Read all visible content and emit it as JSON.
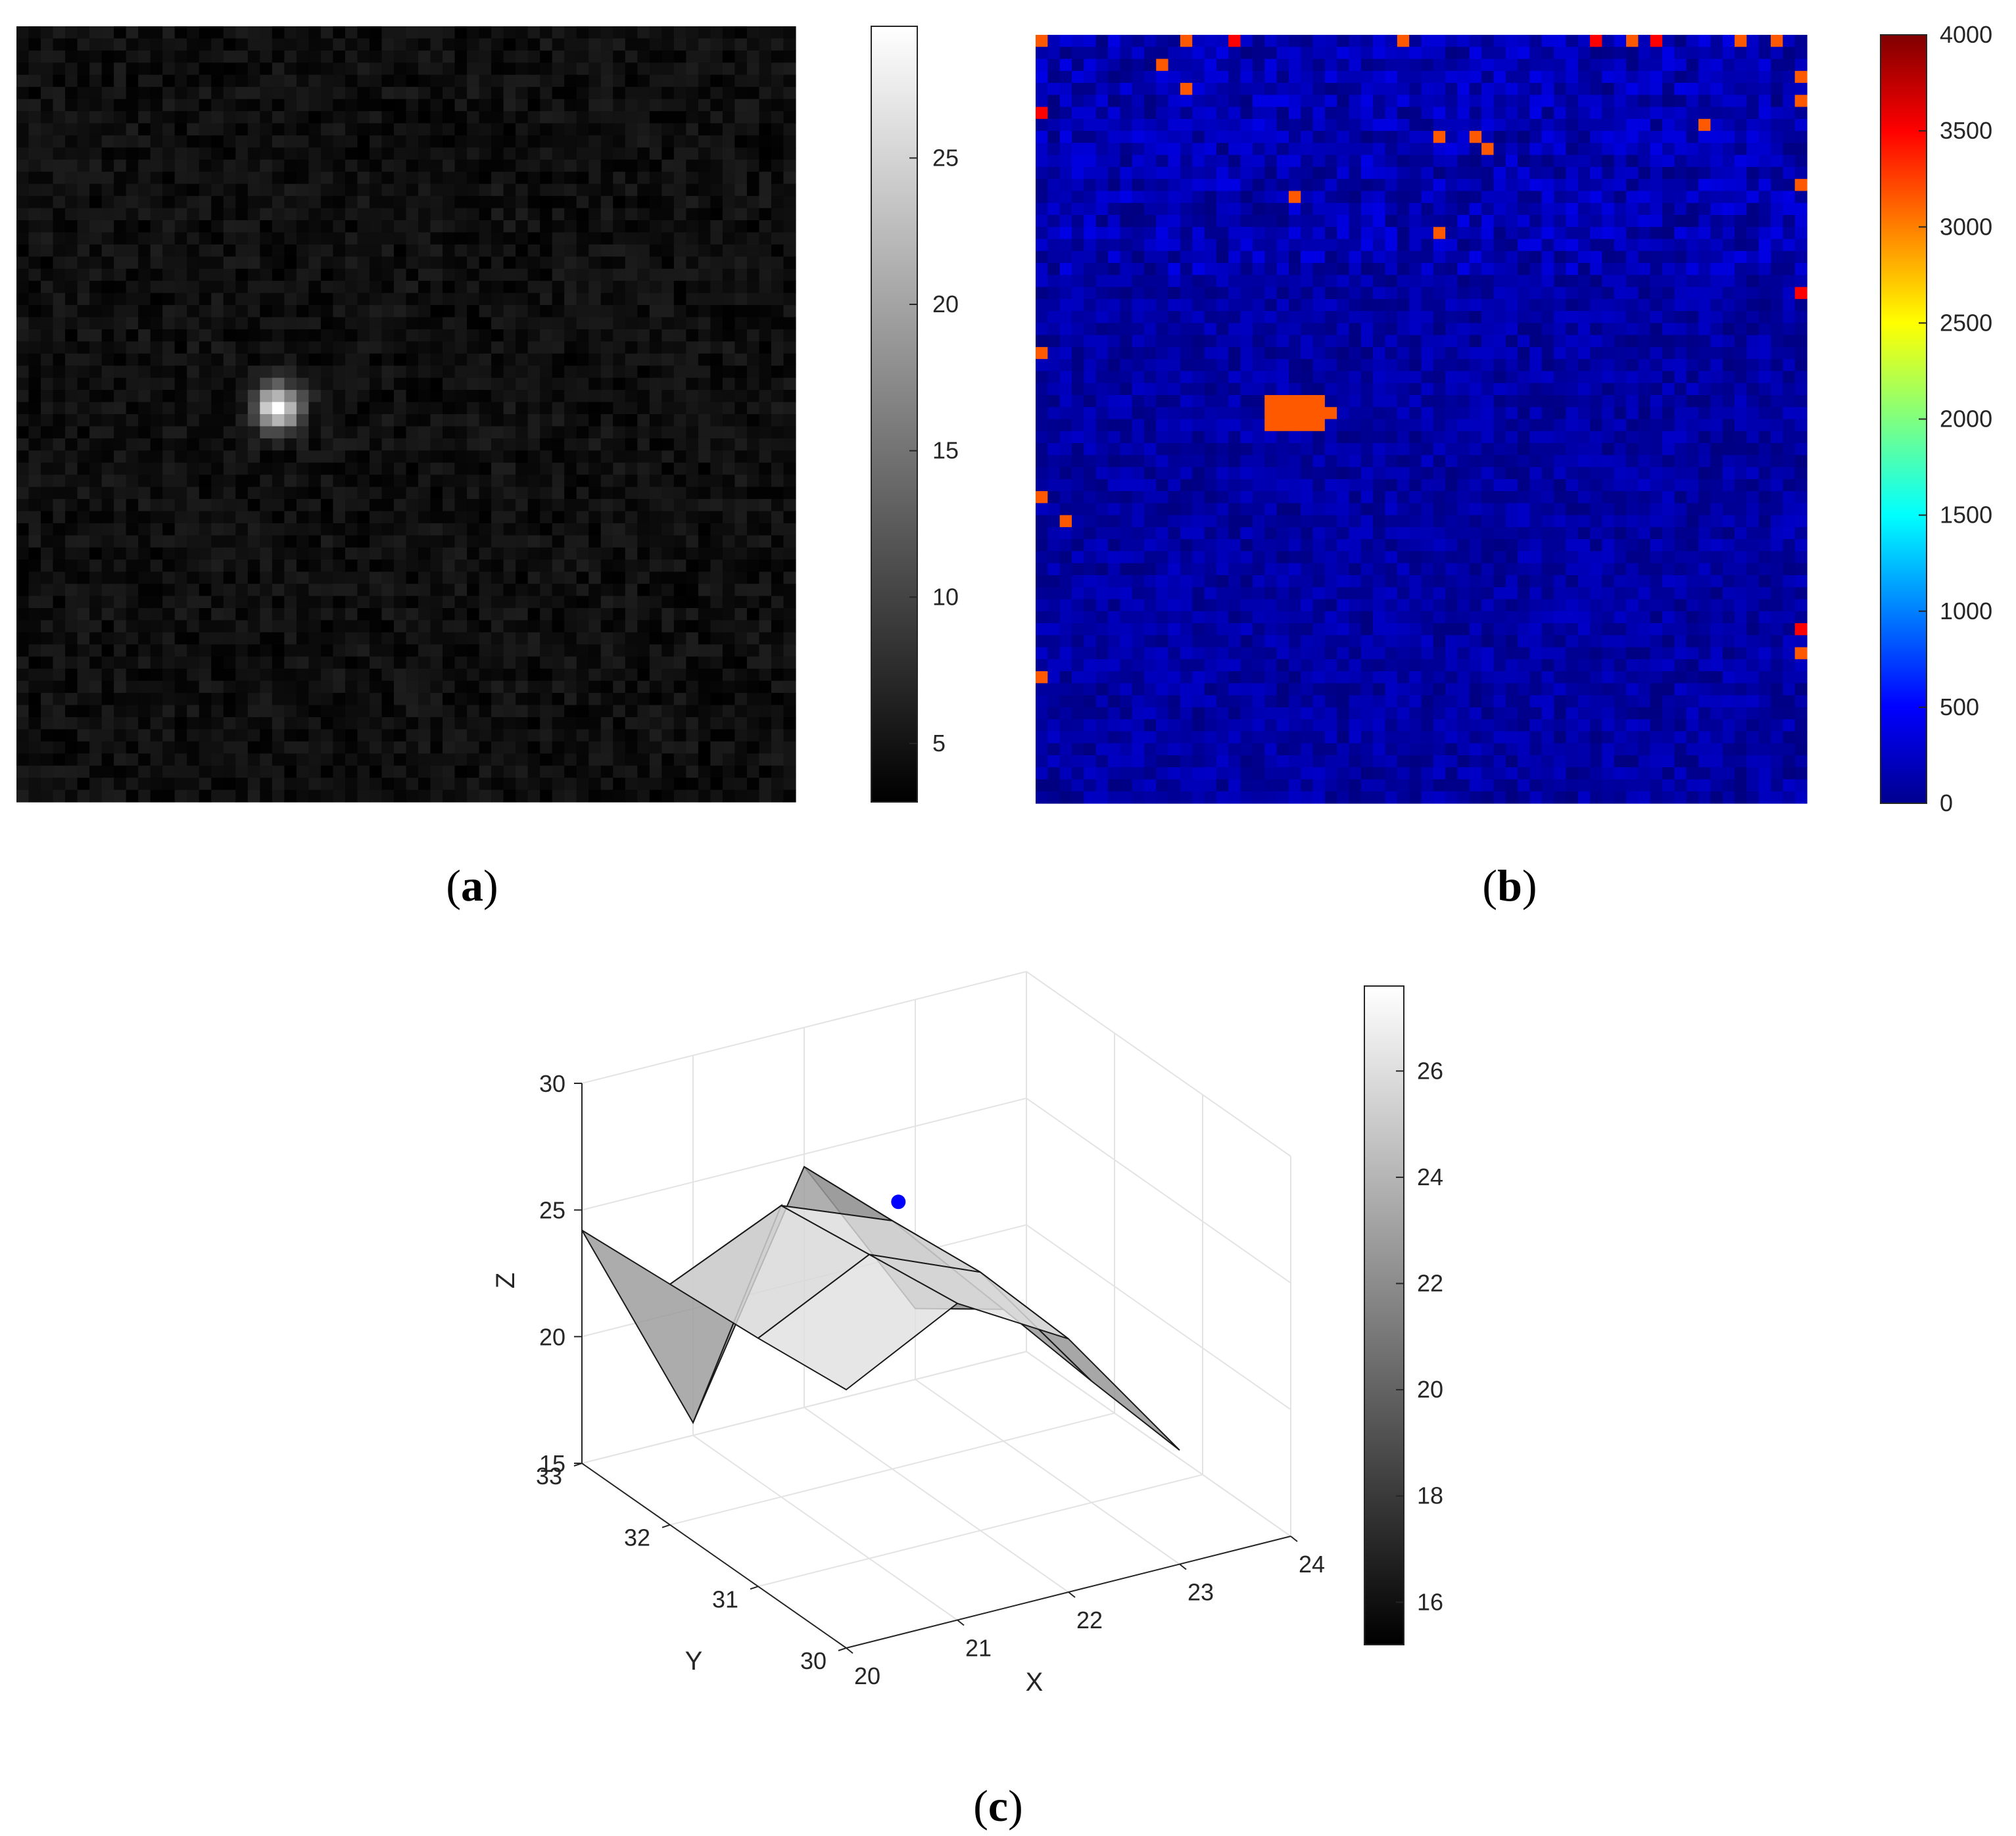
{
  "chart_data": [
    {
      "panel": "a",
      "type": "heatmap",
      "grid_size": 64,
      "colormap": "gray",
      "spot": {
        "col": 21,
        "row": 31,
        "peak": 29
      },
      "background_level": [
        3,
        6
      ],
      "colorbar": {
        "ticks": [
          5,
          10,
          15,
          20,
          25
        ],
        "range": [
          3,
          29.5
        ]
      },
      "caption": {
        "letter": "a",
        "open": "(",
        "close": ")"
      }
    },
    {
      "panel": "b",
      "type": "heatmap",
      "grid_size": 64,
      "colormap": "jet",
      "background_level": [
        0,
        400
      ],
      "hot_block": {
        "cols": [
          19,
          23
        ],
        "rows": [
          30,
          32
        ],
        "value": 3150
      },
      "hot_pixels": [
        [
          0,
          0,
          3150
        ],
        [
          12,
          0,
          3150
        ],
        [
          16,
          0,
          3500
        ],
        [
          30,
          0,
          3150
        ],
        [
          46,
          0,
          3500
        ],
        [
          49,
          0,
          3150
        ],
        [
          51,
          0,
          3500
        ],
        [
          58,
          0,
          3150
        ],
        [
          61,
          0,
          3150
        ],
        [
          10,
          2,
          3150
        ],
        [
          12,
          4,
          3150
        ],
        [
          63,
          3,
          3150
        ],
        [
          63,
          5,
          3150
        ],
        [
          0,
          6,
          3500
        ],
        [
          33,
          8,
          3150
        ],
        [
          36,
          8,
          3150
        ],
        [
          37,
          9,
          3150
        ],
        [
          55,
          7,
          3150
        ],
        [
          21,
          13,
          3150
        ],
        [
          63,
          12,
          3150
        ],
        [
          33,
          16,
          3150
        ],
        [
          63,
          21,
          3500
        ],
        [
          0,
          26,
          3150
        ],
        [
          0,
          38,
          3150
        ],
        [
          2,
          40,
          3150
        ],
        [
          63,
          49,
          3500
        ],
        [
          63,
          51,
          3150
        ],
        [
          0,
          53,
          3150
        ]
      ],
      "colorbar": {
        "ticks": [
          0,
          500,
          1000,
          1500,
          2000,
          2500,
          3000,
          3500,
          4000
        ],
        "range": [
          0,
          4000
        ]
      },
      "caption": {
        "letter": "b",
        "open": "(",
        "close": ")"
      }
    },
    {
      "panel": "c",
      "type": "surface3d",
      "xlabel": "X",
      "ylabel": "Y",
      "zlabel": "Z",
      "x_ticks": [
        20,
        21,
        22,
        23,
        24
      ],
      "y_ticks": [
        30,
        31,
        32,
        33
      ],
      "z_ticks": [
        15,
        20,
        25,
        30
      ],
      "xlim": [
        20,
        24
      ],
      "ylim": [
        30,
        33
      ],
      "zlim": [
        15,
        30
      ],
      "surface": {
        "x": [
          20,
          21,
          22,
          23
        ],
        "y": [
          30,
          31,
          32,
          33
        ],
        "z": [
          [
            25.2,
            27.5,
            25.0,
            19.5
          ],
          [
            24.8,
            27.0,
            25.2,
            19.8
          ],
          [
            24.5,
            26.5,
            24.8,
            20.2
          ],
          [
            24.2,
            15.5,
            24.5,
            17.8
          ]
        ]
      },
      "peak_marker": {
        "x": 21.5,
        "y": 31.3,
        "z": 27.8,
        "color": "#0000ff"
      },
      "colorbar": {
        "ticks": [
          16,
          18,
          20,
          22,
          24,
          26
        ],
        "range": [
          15.2,
          27.6
        ]
      },
      "caption": {
        "letter": "c",
        "open": "(",
        "close": ")"
      }
    }
  ]
}
